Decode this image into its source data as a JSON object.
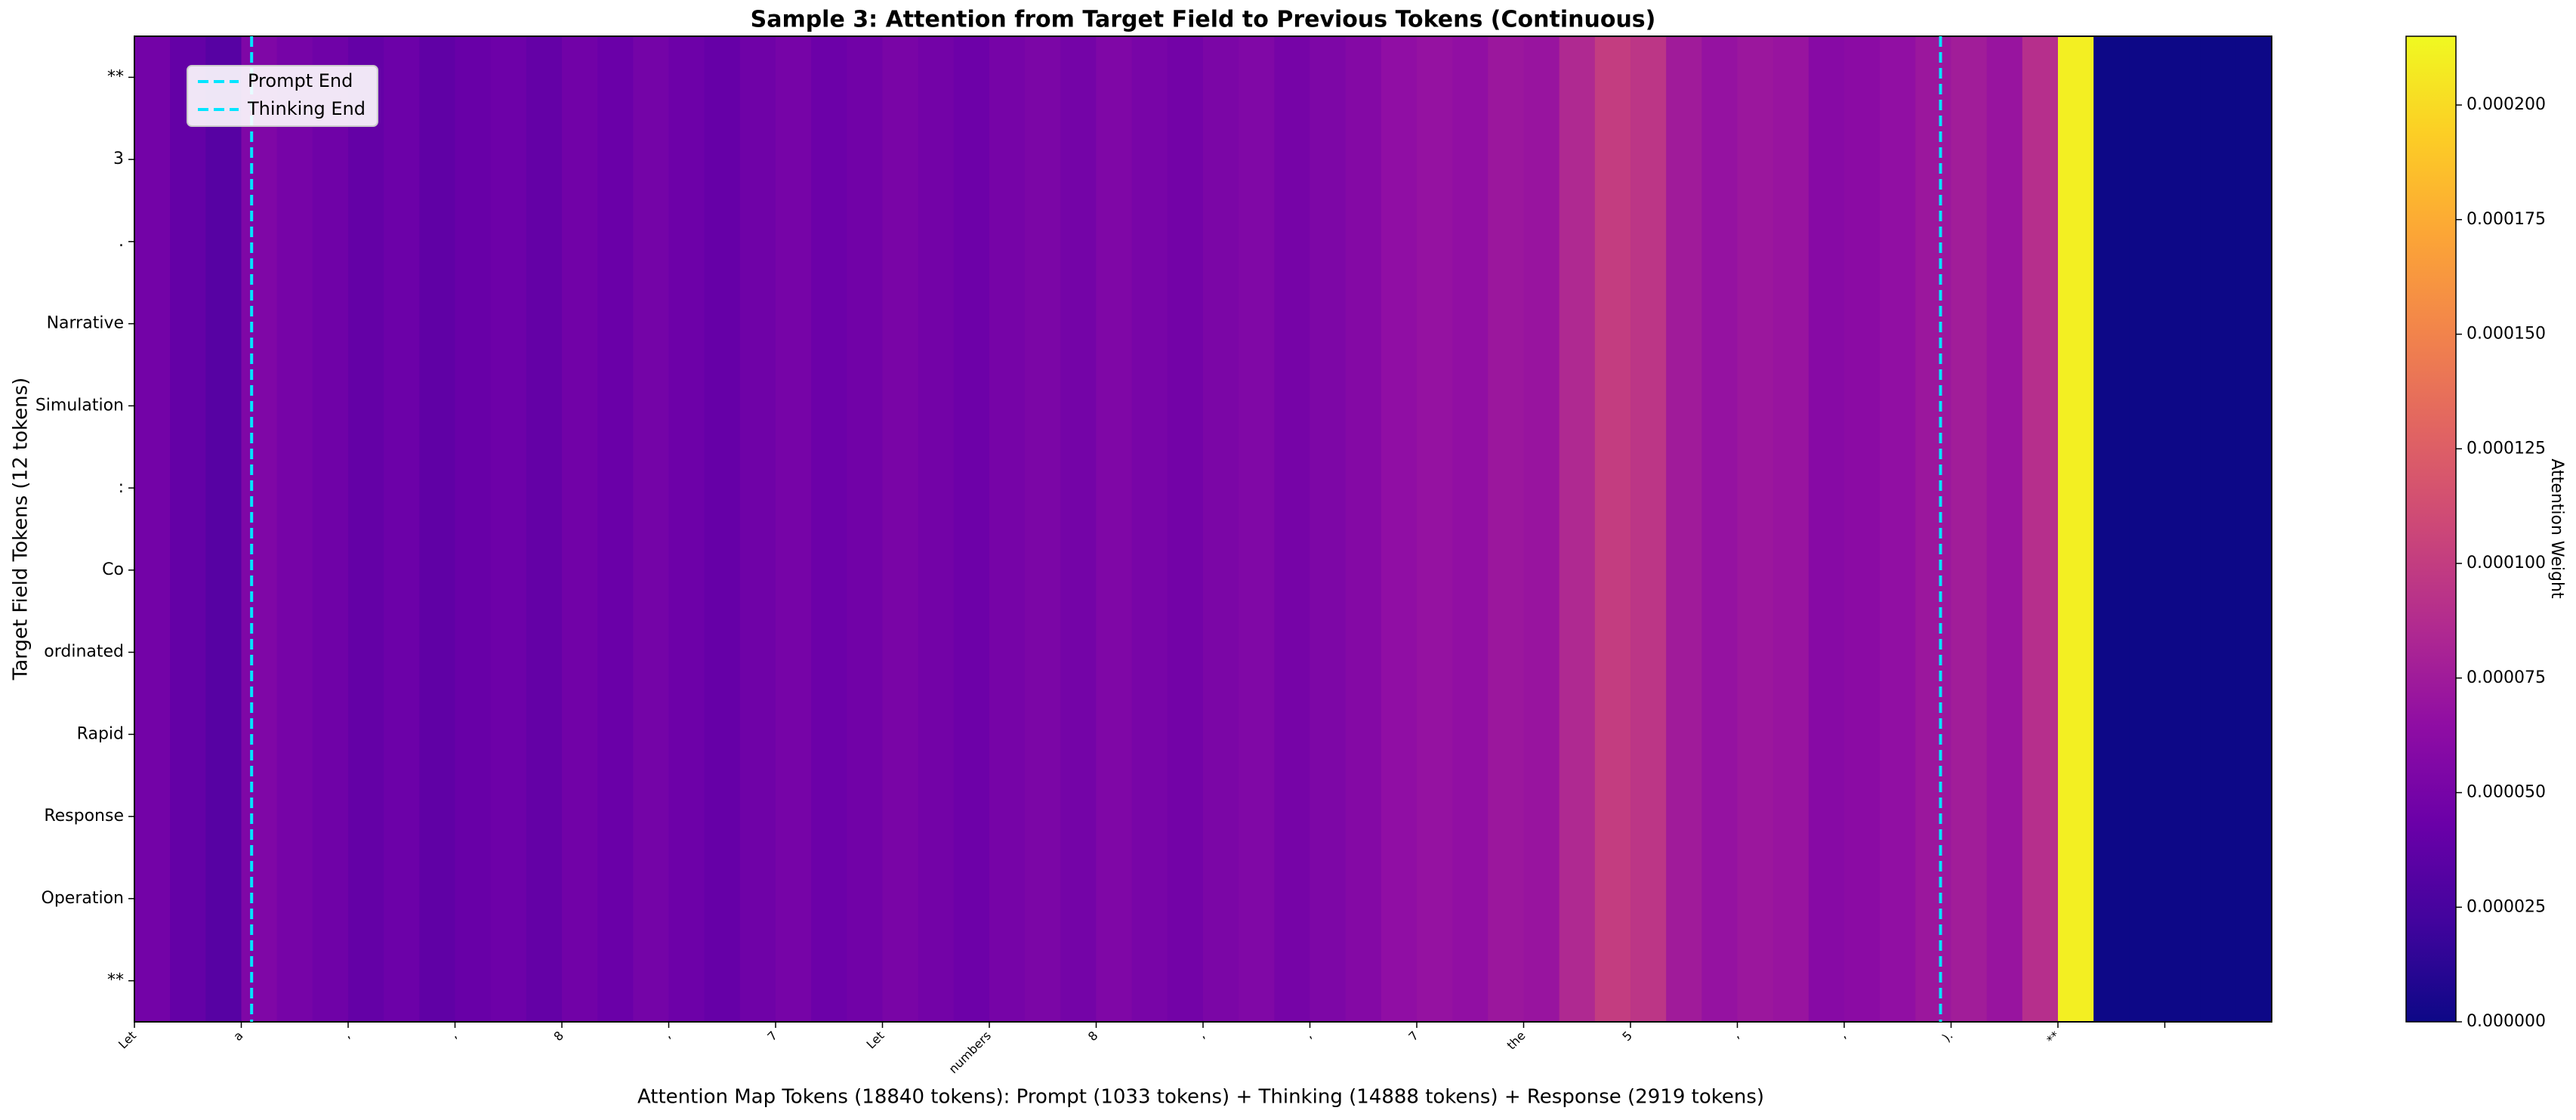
{
  "chart_data": {
    "type": "heatmap",
    "title": "Sample 3: Attention from Target Field to Previous Tokens (Continuous)",
    "xlabel": "Attention Map Tokens (18840 tokens): Prompt (1033 tokens) + Thinking (14888 tokens) + Response (2919 tokens)",
    "ylabel": "Target Field Tokens (12 tokens)",
    "colorbar_label": "Attention Weight",
    "colormap": "plasma",
    "rows": [
      "**",
      "3",
      ".",
      "Narrative",
      "Simulation",
      ":",
      "Co",
      "ordinated",
      "Rapid",
      "Response",
      "Operation",
      "**"
    ],
    "xlim": [
      0,
      18840
    ],
    "xticks": [
      0,
      942,
      1884,
      2826,
      3768,
      4710,
      5652,
      6594,
      7536,
      8478,
      9420,
      10362,
      11304,
      12246,
      13188,
      14130,
      15072,
      16014,
      16956,
      17898
    ],
    "xtick_labels": [
      "Let",
      "a",
      ",",
      ",",
      "8",
      ",",
      "7",
      "Let",
      "numbers",
      "8",
      ",",
      ",",
      "7",
      "the",
      "5",
      ",",
      ",",
      ").",
      "**",
      null
    ],
    "column_edges": [
      0,
      314,
      628,
      942,
      1256,
      1570,
      1884,
      2198,
      2512,
      2826,
      3140,
      3454,
      3768,
      4082,
      4396,
      4710,
      5024,
      5338,
      5652,
      5966,
      6280,
      6594,
      6908,
      7222,
      7536,
      7850,
      8164,
      8478,
      8792,
      9106,
      9420,
      9734,
      10048,
      10362,
      10676,
      10990,
      11304,
      11618,
      11932,
      12246,
      12560,
      12874,
      13188,
      13502,
      13816,
      14130,
      14444,
      14758,
      15072,
      15386,
      15700,
      16014,
      16328,
      16642,
      16956,
      17270,
      17584,
      17898,
      18212,
      18526,
      18840
    ],
    "column_values": [
      4.8e-05,
      4e-05,
      3.3e-05,
      5.5e-05,
      5e-05,
      4.6e-05,
      4e-05,
      4.4e-05,
      3.8e-05,
      4.2e-05,
      4.5e-05,
      4e-05,
      4.7e-05,
      4.3e-05,
      4.9e-05,
      4.5e-05,
      4.1e-05,
      4.6e-05,
      5e-05,
      4.4e-05,
      4.7e-05,
      5.2e-05,
      4.8e-05,
      4.5e-05,
      5e-05,
      5.3e-05,
      4.9e-05,
      5.5e-05,
      5.1e-05,
      4.8e-05,
      5.3e-05,
      5.6e-05,
      5e-05,
      5.4e-05,
      5.8e-05,
      6.5e-05,
      6.8e-05,
      6.6e-05,
      7.2e-05,
      7e-05,
      8.5e-05,
      0.0001,
      9.5e-05,
      7.5e-05,
      6.8e-05,
      7.2e-05,
      7e-05,
      6e-05,
      6.2e-05,
      6.6e-05,
      7.2e-05,
      7.6e-05,
      7e-05,
      9e-05,
      0.00021,
      0,
      0,
      0,
      0,
      0
    ],
    "vlines": [
      {
        "name": "Prompt End",
        "x": 1033,
        "color": "#00e5ff"
      },
      {
        "name": "Thinking End",
        "x": 15921,
        "color": "#00e5ff"
      }
    ],
    "clim": [
      0,
      0.000215
    ],
    "cticks": [
      {
        "value": 0,
        "label": "0.000000"
      },
      {
        "value": 2.5e-05,
        "label": "0.000025"
      },
      {
        "value": 5e-05,
        "label": "0.000050"
      },
      {
        "value": 7.5e-05,
        "label": "0.000075"
      },
      {
        "value": 0.0001,
        "label": "0.000100"
      },
      {
        "value": 0.000125,
        "label": "0.000125"
      },
      {
        "value": 0.00015,
        "label": "0.000150"
      },
      {
        "value": 0.000175,
        "label": "0.000175"
      },
      {
        "value": 0.0002,
        "label": "0.000200"
      }
    ]
  }
}
